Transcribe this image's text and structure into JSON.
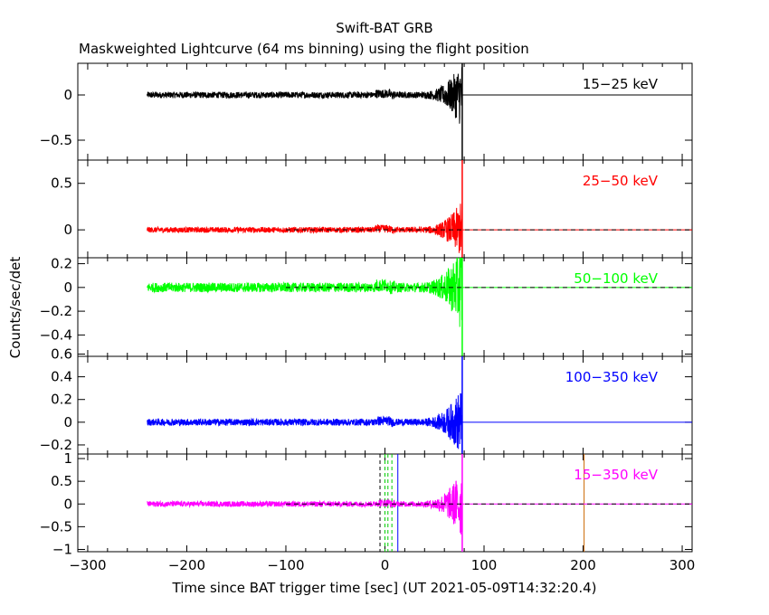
{
  "chart_data": {
    "type": "line",
    "title": "Swift-BAT GRB",
    "subtitle": "Maskweighted Lightcurve (64 ms binning) using the flight position",
    "xlabel": "Time since BAT trigger time [sec] (UT 2021-05-09T14:32:20.4)",
    "ylabel": "Counts/sec/det",
    "xlim": [
      -310,
      310
    ],
    "xticks": [
      -300,
      -200,
      -100,
      0,
      100,
      200,
      300
    ],
    "data_range": [
      -240,
      78
    ],
    "marker_lines": [
      {
        "x": -5,
        "style": "dashed",
        "color": "#000000"
      },
      {
        "x": 0,
        "style": "dashed",
        "color": "#00cc00"
      },
      {
        "x": 3,
        "style": "dashed",
        "color": "#00cc00"
      },
      {
        "x": 7,
        "style": "dashed",
        "color": "#00cc00"
      },
      {
        "x": 13,
        "style": "solid",
        "color": "#0000ff"
      },
      {
        "x": 201,
        "style": "solid",
        "color": "#cc6600"
      }
    ],
    "series": [
      {
        "name": "15-25 keV",
        "color": "#000000",
        "ylim": [
          -0.72,
          0.35
        ],
        "yticks": [
          0,
          -0.5
        ],
        "ytick_labels": [
          "0",
          "−0.5"
        ],
        "noise": 0.035,
        "tail": 0.35,
        "dashed_zero": false
      },
      {
        "name": "25-50 keV",
        "color": "#ff0000",
        "ylim": [
          -0.3,
          0.75
        ],
        "yticks": [
          0.5,
          0
        ],
        "ytick_labels": [
          "0.5",
          "0"
        ],
        "noise": 0.03,
        "tail": 0.3,
        "dashed_zero": true
      },
      {
        "name": "50-100 keV",
        "color": "#00ff00",
        "ylim": [
          -0.58,
          0.25
        ],
        "yticks": [
          0.2,
          0,
          -0.2,
          -0.4
        ],
        "ytick_labels": [
          "0.2",
          "0",
          "−0.2",
          "−0.4"
        ],
        "noise": 0.04,
        "tail": 0.35,
        "dashed_zero": true
      },
      {
        "name": "100-350 keV",
        "color": "#0000ff",
        "ylim": [
          -0.28,
          0.58
        ],
        "yticks": [
          0.6,
          0.4,
          0.2,
          0,
          -0.2
        ],
        "ytick_labels": [
          "0.6",
          "0.4",
          "0.2",
          "0",
          "−0.2"
        ],
        "noise": 0.03,
        "tail": 0.3,
        "dashed_zero": false
      },
      {
        "name": "15-350 keV",
        "color": "#ff00ff",
        "ylim": [
          -1.05,
          1.1
        ],
        "yticks": [
          1,
          0.5,
          0,
          -0.5,
          -1
        ],
        "ytick_labels": [
          "1",
          "0.5",
          "0",
          "−0.5",
          "−1"
        ],
        "noise": 0.06,
        "tail": 0.75,
        "dashed_zero": true
      }
    ]
  }
}
